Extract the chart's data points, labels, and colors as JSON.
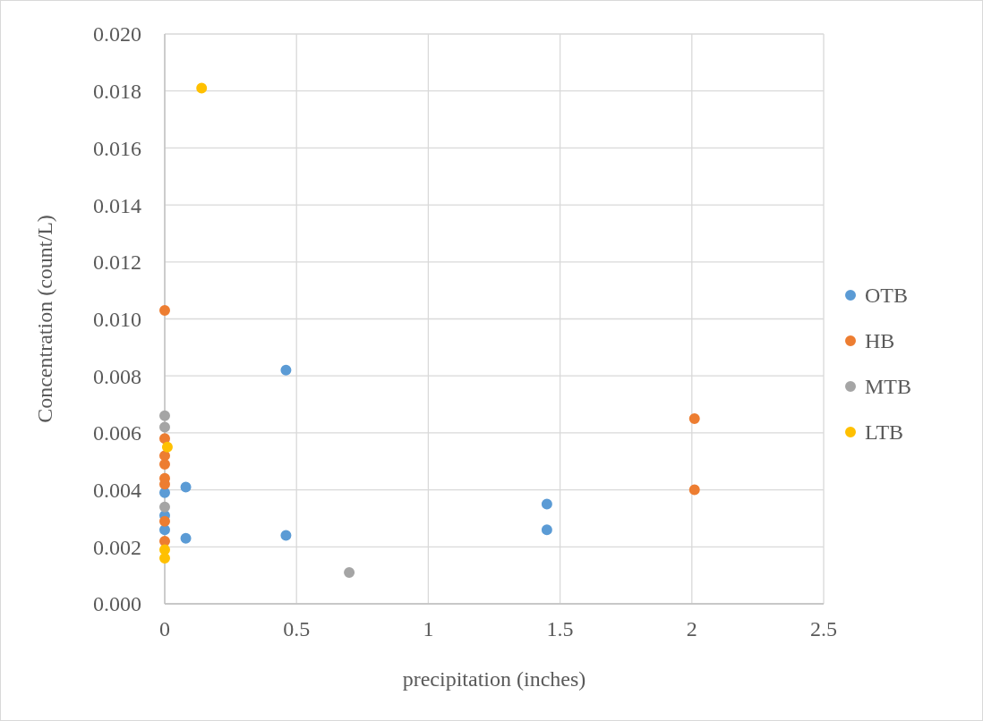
{
  "chart_data": {
    "type": "scatter",
    "xlabel": "precipitation (inches)",
    "ylabel": "Concentration (count/L)",
    "xlim": [
      0,
      2.5
    ],
    "xticks": [
      0,
      0.5,
      1,
      1.5,
      2,
      2.5
    ],
    "ylim": [
      0,
      0.02
    ],
    "yticks": [
      {
        "value": 0,
        "label": "0.000"
      },
      {
        "value": 0.002,
        "label": "0.002"
      },
      {
        "value": 0.004,
        "label": "0.004"
      },
      {
        "value": 0.006,
        "label": "0.006"
      },
      {
        "value": 0.008,
        "label": "0.008"
      },
      {
        "value": 0.01,
        "label": "0.010"
      },
      {
        "value": 0.012,
        "label": "0.012"
      },
      {
        "value": 0.014,
        "label": "0.014"
      },
      {
        "value": 0.016,
        "label": "0.016"
      },
      {
        "value": 0.018,
        "label": "0.018"
      },
      {
        "value": 0.02,
        "label": "0.020"
      }
    ],
    "grid": true,
    "legend": "right",
    "marker": "circle",
    "series": [
      {
        "name": "OTB",
        "color": "#5b9bd5",
        "x": [
          0,
          0,
          0,
          0.08,
          0.08,
          0.46,
          0.46,
          1.45,
          1.45
        ],
        "values": [
          0.0039,
          0.0031,
          0.0026,
          0.0041,
          0.0023,
          0.0082,
          0.0024,
          0.0035,
          0.0026
        ]
      },
      {
        "name": "HB",
        "color": "#ed7d31",
        "x": [
          0,
          0,
          0,
          0,
          0,
          0,
          0,
          0,
          2.01,
          2.01
        ],
        "values": [
          0.0103,
          0.0058,
          0.0052,
          0.0049,
          0.0044,
          0.0042,
          0.0029,
          0.0022,
          0.0065,
          0.004
        ]
      },
      {
        "name": "MTB",
        "color": "#a5a5a5",
        "x": [
          0,
          0,
          0,
          0.7
        ],
        "values": [
          0.0066,
          0.0062,
          0.0034,
          0.0011
        ]
      },
      {
        "name": "LTB",
        "color": "#ffc000",
        "x": [
          0.14,
          0.01,
          0,
          0
        ],
        "values": [
          0.0181,
          0.0055,
          0.0019,
          0.0016
        ]
      }
    ]
  }
}
